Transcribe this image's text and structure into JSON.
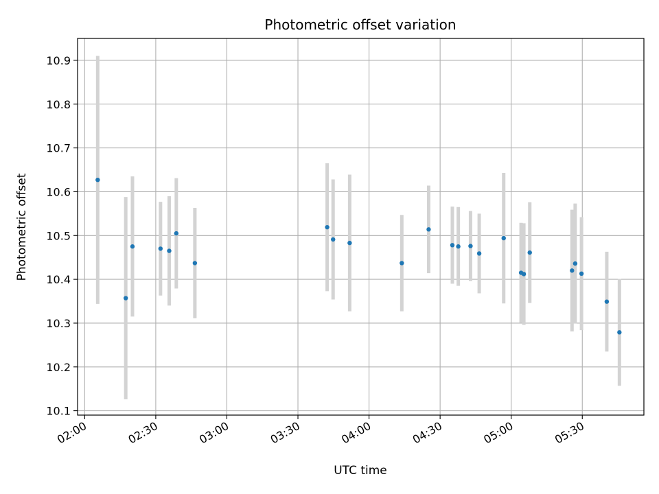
{
  "chart_data": {
    "type": "scatter",
    "title": "Photometric offset variation",
    "xlabel": "UTC time",
    "ylabel": "Photometric offset",
    "grid": true,
    "x_unit": "UTC HH:MM",
    "xlim": [
      "01:57",
      "05:56"
    ],
    "ylim": [
      10.09,
      10.95
    ],
    "x_ticks": [
      "02:00",
      "02:30",
      "03:00",
      "03:30",
      "04:00",
      "04:30",
      "05:00",
      "05:30"
    ],
    "y_ticks": [
      10.1,
      10.2,
      10.3,
      10.4,
      10.5,
      10.6,
      10.7,
      10.8,
      10.9
    ],
    "series": [
      {
        "color": "#1f77b4",
        "errorbar_color": "#d3d3d3",
        "points": [
          {
            "x": "02:05:30",
            "y": 10.627,
            "err": 0.283
          },
          {
            "x": "02:17:20",
            "y": 10.357,
            "err": 0.231
          },
          {
            "x": "02:20:10",
            "y": 10.475,
            "err": 0.16
          },
          {
            "x": "02:32:00",
            "y": 10.47,
            "err": 0.107
          },
          {
            "x": "02:35:40",
            "y": 10.465,
            "err": 0.125
          },
          {
            "x": "02:38:40",
            "y": 10.505,
            "err": 0.126
          },
          {
            "x": "02:46:30",
            "y": 10.437,
            "err": 0.126
          },
          {
            "x": "03:42:20",
            "y": 10.519,
            "err": 0.146
          },
          {
            "x": "03:44:50",
            "y": 10.491,
            "err": 0.137
          },
          {
            "x": "03:51:50",
            "y": 10.483,
            "err": 0.156
          },
          {
            "x": "04:13:50",
            "y": 10.437,
            "err": 0.11
          },
          {
            "x": "04:25:10",
            "y": 10.514,
            "err": 0.1
          },
          {
            "x": "04:35:10",
            "y": 10.478,
            "err": 0.088
          },
          {
            "x": "04:37:40",
            "y": 10.475,
            "err": 0.09
          },
          {
            "x": "04:42:50",
            "y": 10.476,
            "err": 0.08
          },
          {
            "x": "04:46:30",
            "y": 10.459,
            "err": 0.091
          },
          {
            "x": "04:56:50",
            "y": 10.494,
            "err": 0.149
          },
          {
            "x": "05:04:10",
            "y": 10.415,
            "err": 0.114
          },
          {
            "x": "05:05:20",
            "y": 10.412,
            "err": 0.116
          },
          {
            "x": "05:07:50",
            "y": 10.461,
            "err": 0.115
          },
          {
            "x": "05:25:40",
            "y": 10.42,
            "err": 0.139
          },
          {
            "x": "05:27:00",
            "y": 10.436,
            "err": 0.137
          },
          {
            "x": "05:29:40",
            "y": 10.413,
            "err": 0.129
          },
          {
            "x": "05:40:20",
            "y": 10.349,
            "err": 0.114
          },
          {
            "x": "05:45:40",
            "y": 10.279,
            "err": 0.122
          }
        ]
      }
    ]
  }
}
